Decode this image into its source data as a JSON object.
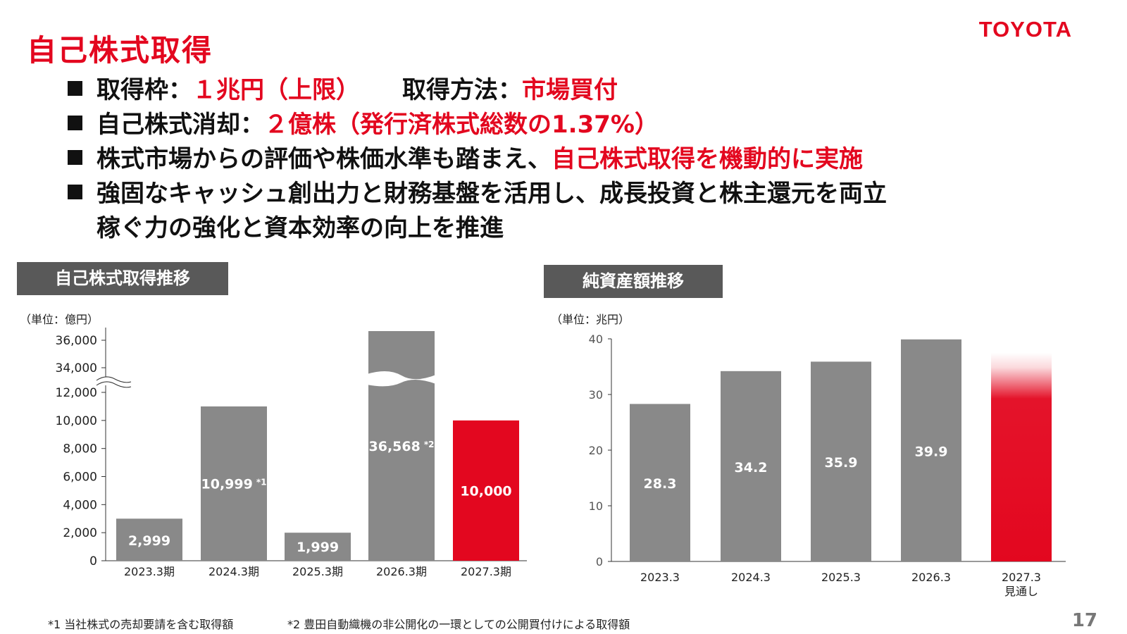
{
  "header": {
    "title": "自己株式取得",
    "logo": "TOYOTA"
  },
  "bullets": {
    "b1": {
      "label1": "取得枠：",
      "value1": "１兆円（上限）",
      "label2": "取得方法：",
      "value2": "市場買付"
    },
    "b2": {
      "label": "自己株式消却：",
      "value": "２億株（発行済株式総数の1.37%）"
    },
    "b3": {
      "text": "株式市場からの評価や株価水準も踏まえ、",
      "highlight": "自己株式取得を機動的に実施"
    },
    "b4": {
      "line1": "強固なキャッシュ創出力と財務基盤を活用し、成長投資と株主還元を両立",
      "line2": "稼ぐ力の強化と資本効率の向上を推進"
    }
  },
  "colors": {
    "accent": "#e3071f",
    "bar": "#898989",
    "label_bg": "#595959"
  },
  "chart_data": [
    {
      "type": "bar",
      "title": "自己株式取得推移",
      "unit": "（単位：億円）",
      "categories": [
        "2023.3期",
        "2024.3期",
        "2025.3期",
        "2026.3期",
        "2027.3期"
      ],
      "values": [
        2999,
        10999,
        1999,
        36568,
        10000
      ],
      "value_labels": [
        "2,999",
        "10,999",
        "1,999",
        "36,568",
        "10,000"
      ],
      "value_notes": [
        "",
        "*1",
        "",
        "*2",
        ""
      ],
      "highlight_index": 4,
      "axis_break": {
        "lower_max": 12000,
        "upper_min": 34000
      },
      "yticks": [
        {
          "value": 0,
          "label": "0"
        },
        {
          "value": 2000,
          "label": "2,000"
        },
        {
          "value": 4000,
          "label": "4,000"
        },
        {
          "value": 6000,
          "label": "6,000"
        },
        {
          "value": 8000,
          "label": "8,000"
        },
        {
          "value": 10000,
          "label": "10,000"
        },
        {
          "value": 12000,
          "label": "12,000"
        },
        {
          "value": 34000,
          "label": "34,000"
        },
        {
          "value": 36000,
          "label": "36,000"
        }
      ],
      "grid": false
    },
    {
      "type": "bar",
      "title": "純資産額推移",
      "unit": "（単位：兆円）",
      "categories": [
        "2023.3",
        "2024.3",
        "2025.3",
        "2026.3",
        "2027.3\n見通し"
      ],
      "values": [
        28.3,
        34.2,
        35.9,
        39.9,
        37.5
      ],
      "value_labels": [
        "28.3",
        "34.2",
        "35.9",
        "39.9",
        ""
      ],
      "highlight_index": 4,
      "ylim": [
        0,
        40
      ],
      "yticks": [
        {
          "value": 0,
          "label": "0"
        },
        {
          "value": 10,
          "label": "10"
        },
        {
          "value": 20,
          "label": "20"
        },
        {
          "value": 30,
          "label": "30"
        },
        {
          "value": 40,
          "label": "40"
        }
      ],
      "grid": false
    }
  ],
  "footnotes": {
    "n1": "*1 当社株式の売却要請を含む取得額",
    "n2": "*2 豊田自動織機の非公開化の一環としての公開買付けによる取得額"
  },
  "page_number": "17"
}
